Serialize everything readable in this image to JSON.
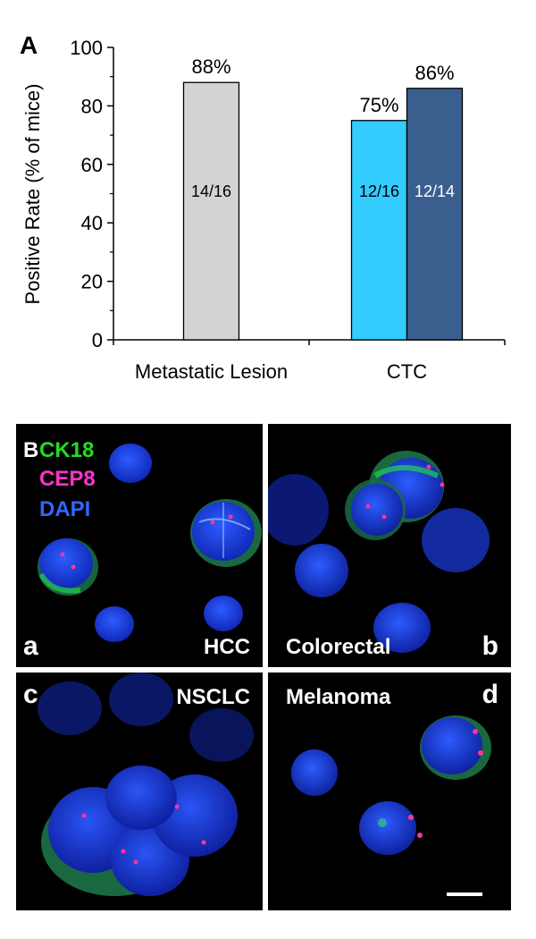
{
  "chart_data": {
    "type": "bar",
    "panel_label": "A",
    "ylabel": "Positive Rate (% of mice)",
    "xlabel": "",
    "ylim": [
      0,
      100
    ],
    "yticks": [
      0,
      20,
      40,
      60,
      80,
      100
    ],
    "categories": [
      "Metastatic Lesion",
      "CTC"
    ],
    "bars": [
      {
        "category": "Metastatic Lesion",
        "value": 88,
        "pct_label": "88%",
        "count_label": "14/16",
        "color": "#d3d3d3",
        "count_color": "#000000"
      },
      {
        "category": "CTC",
        "value": 75,
        "pct_label": "75%",
        "count_label": "12/16",
        "color": "#33ccff",
        "count_color": "#000000"
      },
      {
        "category": "CTC",
        "value": 86,
        "pct_label": "86%",
        "count_label": "12/14",
        "color": "#3a5f8f",
        "count_color": "#ffffff"
      }
    ]
  },
  "figure_b": {
    "panel_label": "B",
    "legend": [
      {
        "text": "CK18",
        "color": "#22dd22"
      },
      {
        "text": "CEP8",
        "color": "#ff33cc"
      },
      {
        "text": "DAPI",
        "color": "#3366ff"
      }
    ],
    "panels": [
      {
        "letter": "a",
        "name": "HCC"
      },
      {
        "letter": "b",
        "name": "Colorectal"
      },
      {
        "letter": "c",
        "name": "NSCLC"
      },
      {
        "letter": "d",
        "name": "Melanoma"
      }
    ]
  }
}
